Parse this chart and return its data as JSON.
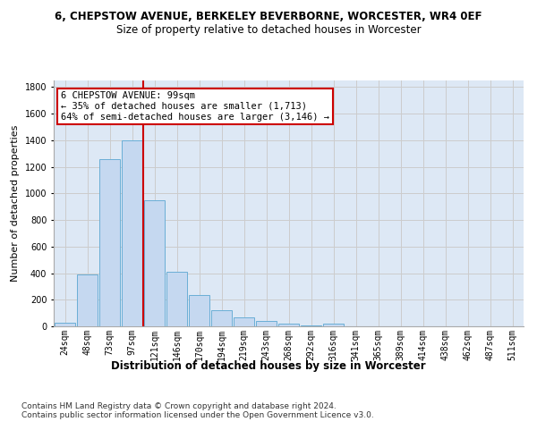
{
  "title_line1": "6, CHEPSTOW AVENUE, BERKELEY BEVERBORNE, WORCESTER, WR4 0EF",
  "title_line2": "Size of property relative to detached houses in Worcester",
  "xlabel": "Distribution of detached houses by size in Worcester",
  "ylabel": "Number of detached properties",
  "bar_labels": [
    "24sqm",
    "48sqm",
    "73sqm",
    "97sqm",
    "121sqm",
    "146sqm",
    "170sqm",
    "194sqm",
    "219sqm",
    "243sqm",
    "268sqm",
    "292sqm",
    "316sqm",
    "341sqm",
    "365sqm",
    "389sqm",
    "414sqm",
    "438sqm",
    "462sqm",
    "487sqm",
    "511sqm"
  ],
  "bar_values": [
    28,
    393,
    1260,
    1400,
    950,
    410,
    235,
    120,
    65,
    42,
    18,
    8,
    18,
    0,
    0,
    0,
    0,
    0,
    0,
    0,
    0
  ],
  "bar_color": "#c5d8f0",
  "bar_edge_color": "#6aaed6",
  "vline_x_idx": 3,
  "vline_color": "#cc0000",
  "annotation_text": "6 CHEPSTOW AVENUE: 99sqm\n← 35% of detached houses are smaller (1,713)\n64% of semi-detached houses are larger (3,146) →",
  "annotation_box_color": "#ffffff",
  "annotation_box_edge": "#cc0000",
  "ylim": [
    0,
    1850
  ],
  "yticks": [
    0,
    200,
    400,
    600,
    800,
    1000,
    1200,
    1400,
    1600,
    1800
  ],
  "grid_color": "#cccccc",
  "bg_color": "#dde8f5",
  "footer_text": "Contains HM Land Registry data © Crown copyright and database right 2024.\nContains public sector information licensed under the Open Government Licence v3.0.",
  "title1_fontsize": 8.5,
  "title2_fontsize": 8.5,
  "xlabel_fontsize": 8.5,
  "ylabel_fontsize": 8,
  "tick_fontsize": 7,
  "annotation_fontsize": 7.5,
  "footer_fontsize": 6.5
}
